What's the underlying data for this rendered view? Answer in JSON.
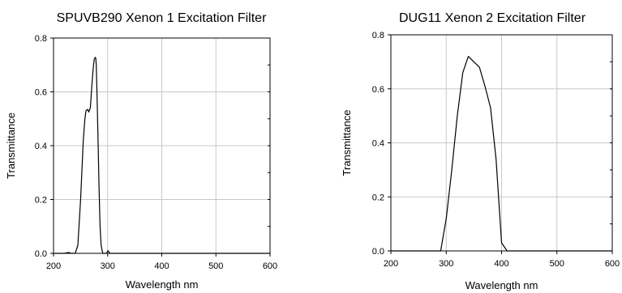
{
  "chart_data": [
    {
      "type": "line",
      "title": "SPUVB290 Xenon 1 Excitation Filter",
      "xlabel": "Wavelength nm",
      "ylabel": "Transmittance",
      "xlim": [
        200,
        600
      ],
      "ylim": [
        0,
        0.8
      ],
      "xticks": [
        "200",
        "300",
        "400",
        "500",
        "600"
      ],
      "yticks": [
        "0.0",
        "0.2",
        "0.4",
        "0.6",
        "0.8"
      ],
      "grid": true,
      "series": [
        {
          "x": [
            200,
            220,
            224,
            228,
            232,
            236,
            240,
            245,
            250,
            255,
            258,
            260,
            263,
            265,
            268,
            270,
            273,
            275,
            277,
            278,
            279,
            280,
            282,
            284,
            286,
            288,
            291,
            294,
            296,
            298,
            300,
            301,
            302,
            304,
            306,
            310,
            350,
            400,
            450,
            500,
            550,
            600
          ],
          "y": [
            0,
            0,
            0.002,
            0.003,
            0,
            0,
            0,
            0.03,
            0.2,
            0.42,
            0.5,
            0.53,
            0.535,
            0.525,
            0.54,
            0.6,
            0.68,
            0.72,
            0.728,
            0.725,
            0.7,
            0.62,
            0.45,
            0.25,
            0.1,
            0.03,
            0,
            0,
            0,
            0,
            0.008,
            0.01,
            0.006,
            0,
            0,
            0,
            0,
            0,
            0,
            0,
            0,
            0
          ]
        }
      ]
    },
    {
      "type": "line",
      "title": "DUG11  Xenon 2 Excitation Filter",
      "xlabel": "Wavelength nm",
      "ylabel": "Transmittance",
      "xlim": [
        200,
        600
      ],
      "ylim": [
        0,
        0.8
      ],
      "xticks": [
        "200",
        "300",
        "400",
        "500",
        "600"
      ],
      "yticks": [
        "0.0",
        "0.2",
        "0.4",
        "0.6",
        "0.8"
      ],
      "grid": true,
      "series": [
        {
          "x": [
            200,
            290,
            300,
            310,
            320,
            330,
            340,
            350,
            360,
            370,
            380,
            390,
            400,
            410,
            600
          ],
          "y": [
            0,
            0,
            0.12,
            0.3,
            0.5,
            0.66,
            0.72,
            0.7,
            0.68,
            0.61,
            0.53,
            0.34,
            0.03,
            0,
            0
          ]
        }
      ]
    }
  ]
}
